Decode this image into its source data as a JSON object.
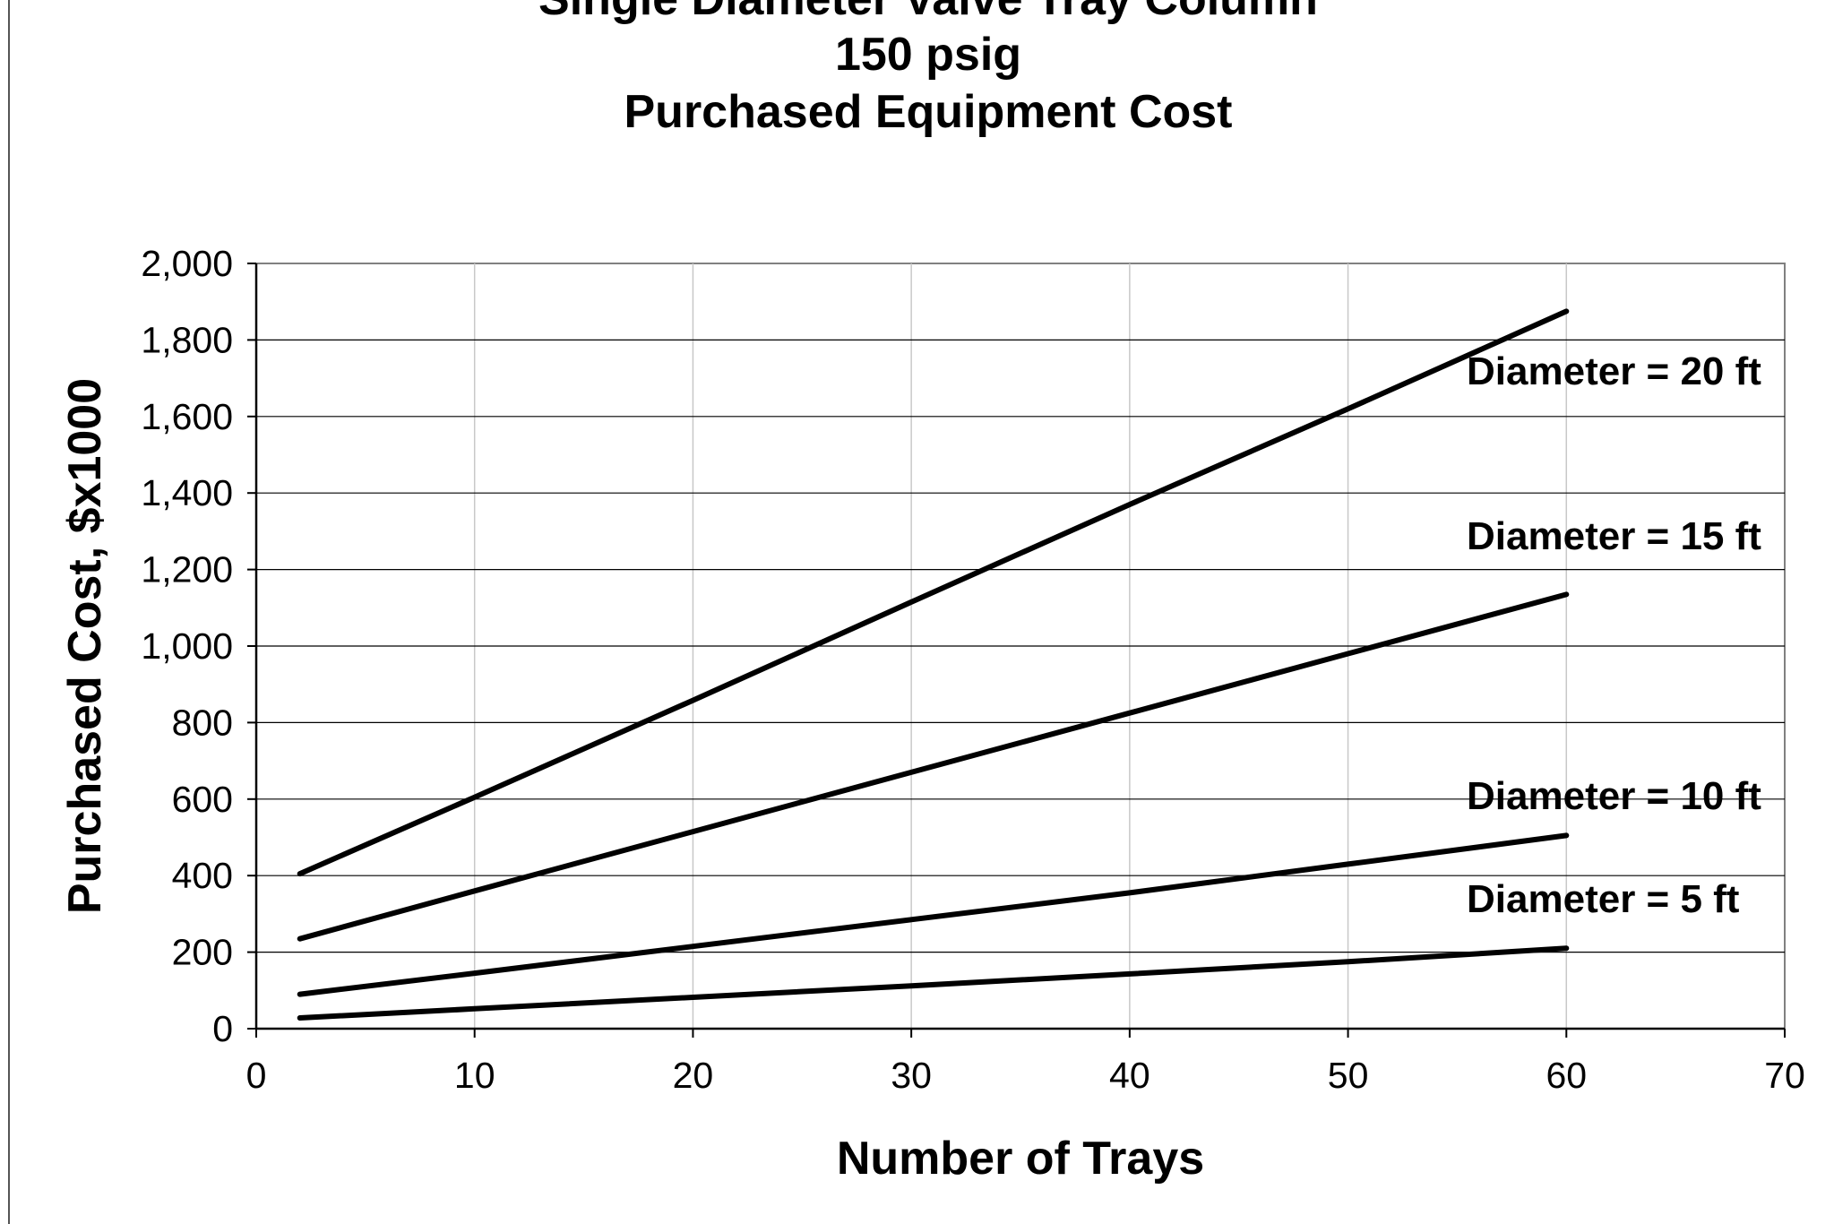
{
  "chart_data": {
    "type": "line",
    "title_lines": [
      "Single Diameter Valve Tray Column",
      "150 psig",
      "Purchased Equipment Cost"
    ],
    "xlabel": "Number of Trays",
    "ylabel": "Purchased Cost, $x1000",
    "xlim": [
      0,
      70
    ],
    "ylim": [
      0,
      2000
    ],
    "x_ticks": [
      0,
      10,
      20,
      30,
      40,
      50,
      60,
      70
    ],
    "x_tick_labels": [
      "0",
      "10",
      "20",
      "30",
      "40",
      "50",
      "60",
      "70"
    ],
    "y_ticks": [
      0,
      200,
      400,
      600,
      800,
      1000,
      1200,
      1400,
      1600,
      1800,
      2000
    ],
    "y_tick_labels": [
      "0",
      "200",
      "400",
      "600",
      "800",
      "1,000",
      "1,200",
      "1,400",
      "1,600",
      "1,800",
      "2,000"
    ],
    "grid": {
      "vertical": true,
      "horizontal_from": 1000
    },
    "legend": "none",
    "colors": {
      "line": "#000000",
      "grid": "#c8c8c8",
      "grid_horizontal": "#000000",
      "plot_border": "#808080"
    },
    "series": [
      {
        "name": "Diameter = 20 ft",
        "points": [
          [
            2,
            405
          ],
          [
            10,
            605
          ],
          [
            20,
            858
          ],
          [
            30,
            1115
          ],
          [
            40,
            1370
          ],
          [
            50,
            1620
          ],
          [
            60,
            1875
          ]
        ]
      },
      {
        "name": "Diameter = 15 ft",
        "points": [
          [
            2,
            235
          ],
          [
            10,
            360
          ],
          [
            20,
            515
          ],
          [
            30,
            670
          ],
          [
            40,
            825
          ],
          [
            50,
            980
          ],
          [
            60,
            1135
          ]
        ]
      },
      {
        "name": "Diameter = 10 ft",
        "points": [
          [
            2,
            90
          ],
          [
            10,
            145
          ],
          [
            20,
            215
          ],
          [
            30,
            285
          ],
          [
            40,
            355
          ],
          [
            50,
            430
          ],
          [
            60,
            505
          ]
        ]
      },
      {
        "name": "Diameter = 5 ft",
        "points": [
          [
            2,
            28
          ],
          [
            10,
            52
          ],
          [
            20,
            82
          ],
          [
            30,
            112
          ],
          [
            40,
            143
          ],
          [
            50,
            175
          ],
          [
            60,
            210
          ]
        ]
      }
    ]
  }
}
